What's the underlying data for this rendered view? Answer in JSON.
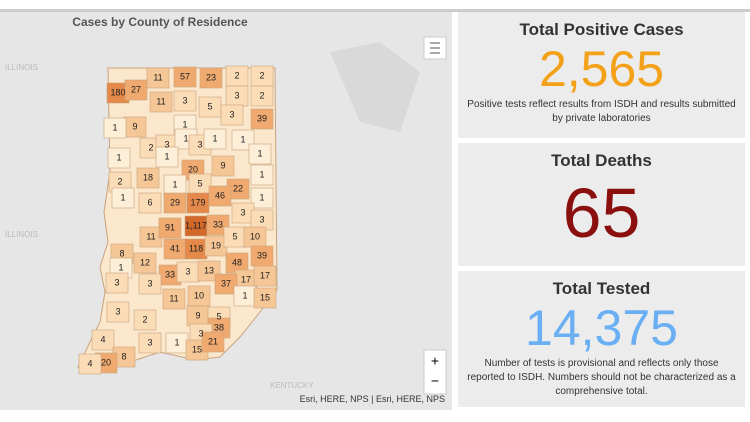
{
  "map": {
    "title": "Cases by County of Residence",
    "background_labels": [
      "ILLINOIS",
      "ILLINOIS",
      "KENTUCKY"
    ],
    "counties": [
      180,
      27,
      11,
      57,
      23,
      2,
      2,
      11,
      3,
      5,
      3,
      2,
      9,
      1,
      1,
      3,
      39,
      2,
      3,
      1,
      3,
      1,
      1,
      1,
      1,
      20,
      9,
      1,
      18,
      2,
      5,
      1,
      22,
      1,
      1,
      6,
      29,
      179,
      46,
      1,
      3,
      11,
      91,
      {
        "value": 1117,
        "label": "1,117"
      },
      33,
      3,
      41,
      118,
      19,
      5,
      10,
      8,
      12,
      48,
      39,
      1,
      33,
      3,
      13,
      17,
      17,
      3,
      3,
      37,
      11,
      10,
      1,
      15,
      3,
      2,
      9,
      5,
      4,
      3,
      1,
      38,
      3,
      8,
      20,
      4,
      15,
      21
    ],
    "zoom_in": "+",
    "zoom_out": "−",
    "attribution": "Esri, HERE, NPS | Esri, HERE, NPS"
  },
  "panels": [
    {
      "title": "Total Positive Cases",
      "value": "2,565",
      "note": "Positive tests reflect results from ISDH and results submitted by private laboratories"
    },
    {
      "title": "Total Deaths",
      "value": "65"
    },
    {
      "title": "Total Tested",
      "value": "14,375",
      "note": "Number of tests is provisional and reflects only those reported to ISDH. Numbers should not be characterized as a comprehensive total."
    }
  ]
}
